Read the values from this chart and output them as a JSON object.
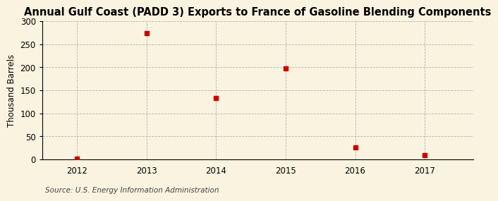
{
  "title": "Annual Gulf Coast (PADD 3) Exports to France of Gasoline Blending Components",
  "ylabel": "Thousand Barrels",
  "source": "Source: U.S. Energy Information Administration",
  "x": [
    2012,
    2013,
    2014,
    2015,
    2016,
    2017
  ],
  "y": [
    1,
    274,
    133,
    198,
    26,
    9
  ],
  "xlim": [
    2011.5,
    2017.7
  ],
  "ylim": [
    0,
    300
  ],
  "yticks": [
    0,
    50,
    100,
    150,
    200,
    250,
    300
  ],
  "xticks": [
    2012,
    2013,
    2014,
    2015,
    2016,
    2017
  ],
  "marker_color": "#cc0000",
  "marker": "s",
  "marker_size": 4,
  "bg_color": "#faf3e0",
  "grid_color": "#aaaaaa",
  "title_fontsize": 10.5,
  "label_fontsize": 8.5,
  "tick_fontsize": 8.5,
  "source_fontsize": 7.5
}
